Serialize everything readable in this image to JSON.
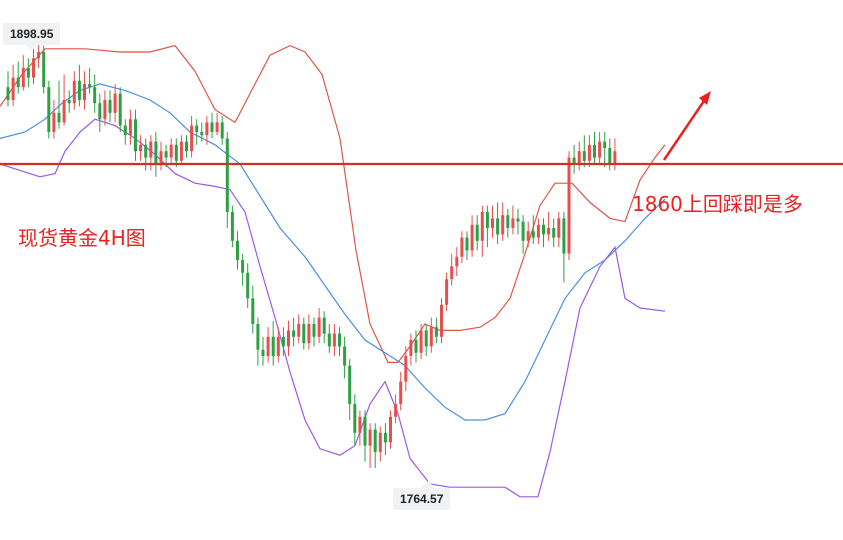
{
  "chart_data": {
    "type": "candlestick",
    "title": "现货黄金4H图",
    "annotation": "1860上回踩即是多",
    "high_label": "1898.95",
    "low_label": "1764.57",
    "support_level": 1860,
    "ylim": [
      1755,
      1905
    ],
    "colors": {
      "up": "#e84e4e",
      "down": "#2ea043",
      "upper_band": "#e05548",
      "lower_band": "#9b59e8",
      "middle_band": "#4a90e2",
      "support_line": "#cc3322",
      "annotation": "#e8231f"
    },
    "candles": [
      [
        1884,
        1880,
        1889,
        1878
      ],
      [
        1880,
        1887,
        1891,
        1878
      ],
      [
        1887,
        1884,
        1892,
        1882
      ],
      [
        1884,
        1890,
        1894,
        1883
      ],
      [
        1890,
        1887,
        1893,
        1884
      ],
      [
        1887,
        1893,
        1896,
        1885
      ],
      [
        1893,
        1895,
        1899,
        1890
      ],
      [
        1895,
        1884,
        1897,
        1882
      ],
      [
        1884,
        1870,
        1886,
        1868
      ],
      [
        1870,
        1876,
        1880,
        1868
      ],
      [
        1876,
        1873,
        1886,
        1871
      ],
      [
        1873,
        1880,
        1888,
        1872
      ],
      [
        1880,
        1879,
        1883,
        1876
      ],
      [
        1879,
        1886,
        1889,
        1877
      ],
      [
        1886,
        1880,
        1891,
        1878
      ],
      [
        1880,
        1885,
        1889,
        1877
      ],
      [
        1885,
        1884,
        1890,
        1882
      ],
      [
        1884,
        1879,
        1888,
        1876
      ],
      [
        1879,
        1874,
        1882,
        1870
      ],
      [
        1874,
        1880,
        1883,
        1872
      ],
      [
        1880,
        1876,
        1883,
        1873
      ],
      [
        1876,
        1882,
        1885,
        1873
      ],
      [
        1882,
        1872,
        1884,
        1870
      ],
      [
        1872,
        1869,
        1874,
        1866
      ],
      [
        1869,
        1874,
        1877,
        1866
      ],
      [
        1874,
        1864,
        1877,
        1861
      ],
      [
        1864,
        1866,
        1869,
        1861
      ],
      [
        1866,
        1862,
        1868,
        1858
      ],
      [
        1862,
        1867,
        1869,
        1858
      ],
      [
        1867,
        1860,
        1870,
        1856
      ],
      [
        1860,
        1864,
        1867,
        1858
      ],
      [
        1864,
        1862,
        1866,
        1859
      ],
      [
        1862,
        1866,
        1868,
        1860
      ],
      [
        1866,
        1861,
        1868,
        1859
      ],
      [
        1861,
        1867,
        1869,
        1860
      ],
      [
        1867,
        1864,
        1869,
        1862
      ],
      [
        1864,
        1872,
        1875,
        1862
      ],
      [
        1872,
        1870,
        1874,
        1866
      ],
      [
        1870,
        1869,
        1873,
        1867
      ],
      [
        1869,
        1873,
        1875,
        1866
      ],
      [
        1873,
        1870,
        1876,
        1868
      ],
      [
        1870,
        1873,
        1876,
        1869
      ],
      [
        1873,
        1868,
        1875,
        1866
      ],
      [
        1868,
        1845,
        1870,
        1840
      ],
      [
        1845,
        1836,
        1847,
        1834
      ],
      [
        1836,
        1830,
        1839,
        1827
      ],
      [
        1830,
        1826,
        1832,
        1822
      ],
      [
        1826,
        1818,
        1829,
        1815
      ],
      [
        1818,
        1810,
        1822,
        1807
      ],
      [
        1810,
        1802,
        1812,
        1797
      ],
      [
        1802,
        1800,
        1806,
        1797
      ],
      [
        1800,
        1806,
        1809,
        1798
      ],
      [
        1806,
        1800,
        1811,
        1797
      ],
      [
        1800,
        1806,
        1809,
        1798
      ],
      [
        1806,
        1803,
        1809,
        1800
      ],
      [
        1803,
        1808,
        1811,
        1800
      ],
      [
        1808,
        1806,
        1812,
        1803
      ],
      [
        1806,
        1810,
        1813,
        1804
      ],
      [
        1810,
        1804,
        1812,
        1802
      ],
      [
        1804,
        1810,
        1813,
        1802
      ],
      [
        1810,
        1806,
        1812,
        1803
      ],
      [
        1806,
        1812,
        1815,
        1804
      ],
      [
        1812,
        1807,
        1814,
        1804
      ],
      [
        1807,
        1803,
        1810,
        1801
      ],
      [
        1803,
        1807,
        1810,
        1800
      ],
      [
        1807,
        1803,
        1809,
        1800
      ],
      [
        1803,
        1797,
        1806,
        1793
      ],
      [
        1797,
        1785,
        1799,
        1780
      ],
      [
        1785,
        1776,
        1788,
        1772
      ],
      [
        1776,
        1781,
        1783,
        1772
      ],
      [
        1781,
        1772,
        1783,
        1767
      ],
      [
        1772,
        1777,
        1779,
        1765
      ],
      [
        1777,
        1770,
        1779,
        1765
      ],
      [
        1770,
        1776,
        1778,
        1767
      ],
      [
        1776,
        1773,
        1779,
        1769
      ],
      [
        1773,
        1781,
        1783,
        1771
      ],
      [
        1781,
        1785,
        1788,
        1779
      ],
      [
        1785,
        1792,
        1795,
        1783
      ],
      [
        1792,
        1800,
        1803,
        1789
      ],
      [
        1800,
        1805,
        1807,
        1797
      ],
      [
        1805,
        1801,
        1808,
        1798
      ],
      [
        1801,
        1808,
        1810,
        1799
      ],
      [
        1808,
        1803,
        1810,
        1800
      ],
      [
        1803,
        1809,
        1812,
        1801
      ],
      [
        1809,
        1806,
        1812,
        1804
      ],
      [
        1806,
        1816,
        1818,
        1804
      ],
      [
        1816,
        1824,
        1826,
        1814
      ],
      [
        1824,
        1828,
        1832,
        1822
      ],
      [
        1828,
        1831,
        1834,
        1825
      ],
      [
        1831,
        1837,
        1839,
        1829
      ],
      [
        1837,
        1833,
        1839,
        1830
      ],
      [
        1833,
        1841,
        1844,
        1831
      ],
      [
        1841,
        1836,
        1844,
        1833
      ],
      [
        1836,
        1845,
        1847,
        1831
      ],
      [
        1845,
        1840,
        1847,
        1834
      ],
      [
        1840,
        1843,
        1847,
        1837
      ],
      [
        1843,
        1838,
        1848,
        1835
      ],
      [
        1838,
        1844,
        1848,
        1836
      ],
      [
        1844,
        1840,
        1846,
        1837
      ],
      [
        1840,
        1843,
        1847,
        1838
      ],
      [
        1843,
        1842,
        1846,
        1838
      ],
      [
        1842,
        1836,
        1844,
        1832
      ],
      [
        1836,
        1839,
        1842,
        1834
      ],
      [
        1839,
        1837,
        1844,
        1835
      ],
      [
        1837,
        1841,
        1843,
        1835
      ],
      [
        1841,
        1838,
        1843,
        1834
      ],
      [
        1838,
        1840,
        1845,
        1836
      ],
      [
        1840,
        1837,
        1843,
        1834
      ],
      [
        1837,
        1843,
        1845,
        1834
      ],
      [
        1843,
        1832,
        1845,
        1823
      ],
      [
        1832,
        1862,
        1864,
        1830
      ],
      [
        1862,
        1860,
        1866,
        1857
      ],
      [
        1860,
        1864,
        1867,
        1858
      ],
      [
        1864,
        1861,
        1869,
        1859
      ],
      [
        1861,
        1866,
        1869,
        1859
      ],
      [
        1866,
        1862,
        1870,
        1860
      ],
      [
        1862,
        1867,
        1870,
        1860
      ],
      [
        1867,
        1865,
        1870,
        1859
      ],
      [
        1865,
        1860,
        1868,
        1858
      ],
      [
        1860,
        1864,
        1868,
        1858
      ]
    ],
    "upper_band": [
      [
        0,
        1878
      ],
      [
        22,
        1888
      ],
      [
        45,
        1896
      ],
      [
        85,
        1896
      ],
      [
        120,
        1895
      ],
      [
        150,
        1895
      ],
      [
        175,
        1897
      ],
      [
        195,
        1889
      ],
      [
        215,
        1877
      ],
      [
        235,
        1873
      ],
      [
        255,
        1885
      ],
      [
        270,
        1894
      ],
      [
        290,
        1897
      ],
      [
        305,
        1895
      ],
      [
        322,
        1888
      ],
      [
        340,
        1868
      ],
      [
        356,
        1833
      ],
      [
        370,
        1810
      ],
      [
        388,
        1798
      ],
      [
        398,
        1798
      ],
      [
        410,
        1803
      ],
      [
        425,
        1810
      ],
      [
        440,
        1808
      ],
      [
        460,
        1808
      ],
      [
        480,
        1809
      ],
      [
        495,
        1812
      ],
      [
        510,
        1818
      ],
      [
        525,
        1832
      ],
      [
        540,
        1847
      ],
      [
        555,
        1854
      ],
      [
        572,
        1854
      ],
      [
        590,
        1848
      ],
      [
        610,
        1843
      ],
      [
        625,
        1842
      ],
      [
        640,
        1855
      ],
      [
        655,
        1862
      ],
      [
        665,
        1866
      ]
    ],
    "middle_band": [
      [
        0,
        1868
      ],
      [
        25,
        1870
      ],
      [
        45,
        1874
      ],
      [
        62,
        1879
      ],
      [
        80,
        1883
      ],
      [
        100,
        1885
      ],
      [
        125,
        1883
      ],
      [
        150,
        1880
      ],
      [
        170,
        1876
      ],
      [
        190,
        1870
      ],
      [
        215,
        1866
      ],
      [
        240,
        1860
      ],
      [
        260,
        1850
      ],
      [
        280,
        1840
      ],
      [
        305,
        1831
      ],
      [
        325,
        1822
      ],
      [
        345,
        1813
      ],
      [
        365,
        1805
      ],
      [
        385,
        1801
      ],
      [
        405,
        1797
      ],
      [
        425,
        1790
      ],
      [
        445,
        1784
      ],
      [
        465,
        1780
      ],
      [
        485,
        1780
      ],
      [
        505,
        1782
      ],
      [
        525,
        1792
      ],
      [
        545,
        1805
      ],
      [
        565,
        1818
      ],
      [
        585,
        1826
      ],
      [
        605,
        1830
      ],
      [
        625,
        1836
      ],
      [
        645,
        1843
      ],
      [
        665,
        1849
      ]
    ],
    "lower_band": [
      [
        0,
        1860
      ],
      [
        20,
        1858
      ],
      [
        40,
        1856
      ],
      [
        55,
        1857
      ],
      [
        65,
        1864
      ],
      [
        80,
        1870
      ],
      [
        95,
        1874
      ],
      [
        115,
        1872
      ],
      [
        135,
        1868
      ],
      [
        155,
        1863
      ],
      [
        175,
        1857
      ],
      [
        195,
        1854
      ],
      [
        215,
        1853
      ],
      [
        230,
        1852
      ],
      [
        245,
        1845
      ],
      [
        260,
        1828
      ],
      [
        275,
        1812
      ],
      [
        290,
        1795
      ],
      [
        305,
        1780
      ],
      [
        320,
        1771
      ],
      [
        340,
        1769
      ],
      [
        355,
        1772
      ],
      [
        370,
        1785
      ],
      [
        385,
        1792
      ],
      [
        398,
        1782
      ],
      [
        410,
        1768
      ],
      [
        430,
        1760
      ],
      [
        450,
        1759
      ],
      [
        480,
        1759
      ],
      [
        505,
        1759
      ],
      [
        520,
        1756
      ],
      [
        538,
        1756
      ],
      [
        550,
        1770
      ],
      [
        565,
        1792
      ],
      [
        580,
        1815
      ],
      [
        600,
        1828
      ],
      [
        615,
        1834
      ],
      [
        625,
        1818
      ],
      [
        640,
        1815
      ],
      [
        665,
        1814
      ]
    ]
  }
}
